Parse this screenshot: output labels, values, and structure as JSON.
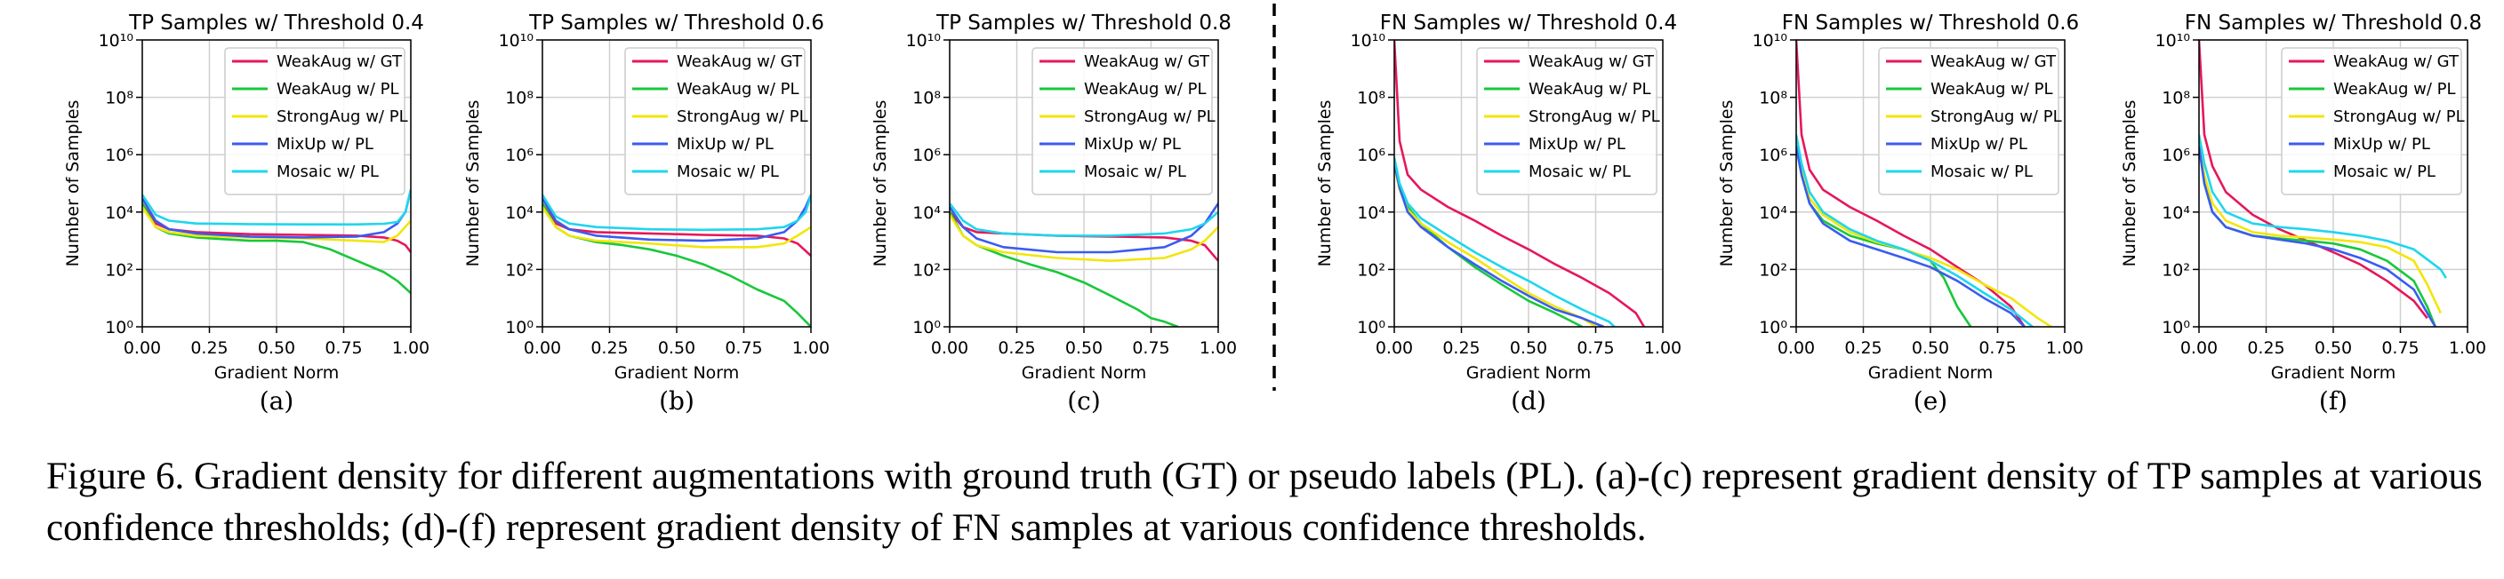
{
  "colors": {
    "weak_gt": "#e6175a",
    "weak_pl": "#18c83a",
    "strong_pl": "#f2e60c",
    "mixup_pl": "#3a5cf0",
    "mosaic_pl": "#1ed6ee"
  },
  "caption": "Figure 6. Gradient density for different augmentations with ground truth (GT) or pseudo labels (PL). (a)-(c) represent gradient density of TP samples at various confidence thresholds; (d)-(f) represent gradient density of FN samples at various confidence thresholds.",
  "chart_data": [
    {
      "type": "line",
      "title": "TP Samples w/ Threshold 0.4",
      "sublabel": "(a)",
      "xlabel": "Gradient Norm",
      "ylabel": "Number of Samples",
      "xlim": [
        0,
        1
      ],
      "ylim": [
        1,
        10000000000
      ],
      "yscale": "log",
      "xticks": [
        "0.00",
        "0.25",
        "0.50",
        "0.75",
        "1.00"
      ],
      "grid": true,
      "legend": "top-right",
      "series": [
        {
          "name": "WeakAug w/ GT",
          "color": "#e6175a",
          "x": [
            0.0,
            0.05,
            0.1,
            0.2,
            0.4,
            0.6,
            0.8,
            0.9,
            0.95,
            0.98,
            1.0
          ],
          "y": [
            20000,
            4000,
            2500,
            2000,
            1700,
            1600,
            1500,
            1300,
            1000,
            700,
            400
          ]
        },
        {
          "name": "WeakAug w/ PL",
          "color": "#18c83a",
          "x": [
            0.0,
            0.05,
            0.1,
            0.2,
            0.4,
            0.5,
            0.6,
            0.7,
            0.8,
            0.9,
            0.95,
            1.0
          ],
          "y": [
            20000,
            3000,
            1800,
            1300,
            1000,
            1000,
            900,
            500,
            200,
            80,
            40,
            15
          ]
        },
        {
          "name": "StrongAug w/ PL",
          "color": "#f2e60c",
          "x": [
            0.0,
            0.05,
            0.1,
            0.2,
            0.4,
            0.6,
            0.8,
            0.9,
            0.95,
            1.0
          ],
          "y": [
            15000,
            3000,
            2000,
            1500,
            1300,
            1200,
            1000,
            900,
            1500,
            5000
          ]
        },
        {
          "name": "MixUp w/ PL",
          "color": "#3a5cf0",
          "x": [
            0.0,
            0.05,
            0.1,
            0.2,
            0.4,
            0.6,
            0.8,
            0.9,
            0.95,
            0.98,
            1.0
          ],
          "y": [
            30000,
            5000,
            2500,
            1800,
            1400,
            1300,
            1400,
            2000,
            4000,
            10000,
            60000
          ]
        },
        {
          "name": "Mosaic w/ PL",
          "color": "#1ed6ee",
          "x": [
            0.0,
            0.05,
            0.1,
            0.2,
            0.4,
            0.6,
            0.8,
            0.9,
            0.95,
            0.98,
            1.0
          ],
          "y": [
            40000,
            8000,
            5000,
            4000,
            3800,
            3700,
            3700,
            3900,
            4500,
            10000,
            60000
          ]
        }
      ]
    },
    {
      "type": "line",
      "title": "TP Samples w/ Threshold 0.6",
      "sublabel": "(b)",
      "xlabel": "Gradient Norm",
      "ylabel": "Number of Samples",
      "xlim": [
        0,
        1
      ],
      "ylim": [
        1,
        10000000000
      ],
      "yscale": "log",
      "xticks": [
        "0.00",
        "0.25",
        "0.50",
        "0.75",
        "1.00"
      ],
      "grid": true,
      "legend": "top-right",
      "series": [
        {
          "name": "WeakAug w/ GT",
          "color": "#e6175a",
          "x": [
            0.0,
            0.05,
            0.1,
            0.2,
            0.4,
            0.6,
            0.8,
            0.9,
            0.95,
            1.0
          ],
          "y": [
            20000,
            4000,
            2500,
            2000,
            1800,
            1600,
            1500,
            1200,
            800,
            300
          ]
        },
        {
          "name": "WeakAug w/ PL",
          "color": "#18c83a",
          "x": [
            0.0,
            0.05,
            0.1,
            0.2,
            0.3,
            0.4,
            0.5,
            0.6,
            0.7,
            0.8,
            0.9,
            0.95,
            1.0
          ],
          "y": [
            20000,
            3000,
            1500,
            900,
            700,
            500,
            300,
            150,
            60,
            20,
            8,
            3,
            1
          ]
        },
        {
          "name": "StrongAug w/ PL",
          "color": "#f2e60c",
          "x": [
            0.0,
            0.05,
            0.1,
            0.2,
            0.4,
            0.6,
            0.8,
            0.9,
            0.95,
            1.0
          ],
          "y": [
            15000,
            3000,
            1500,
            1000,
            800,
            600,
            600,
            800,
            1500,
            3000
          ]
        },
        {
          "name": "MixUp w/ PL",
          "color": "#3a5cf0",
          "x": [
            0.0,
            0.05,
            0.1,
            0.2,
            0.4,
            0.6,
            0.8,
            0.9,
            0.95,
            0.98,
            1.0
          ],
          "y": [
            30000,
            5000,
            2500,
            1500,
            1100,
            1000,
            1200,
            2000,
            5000,
            15000,
            40000
          ]
        },
        {
          "name": "Mosaic w/ PL",
          "color": "#1ed6ee",
          "x": [
            0.0,
            0.05,
            0.1,
            0.2,
            0.4,
            0.6,
            0.8,
            0.9,
            0.95,
            0.98,
            1.0
          ],
          "y": [
            40000,
            7000,
            4000,
            3000,
            2500,
            2400,
            2500,
            3000,
            5000,
            10000,
            40000
          ]
        }
      ]
    },
    {
      "type": "line",
      "title": "TP Samples w/ Threshold 0.8",
      "sublabel": "(c)",
      "xlabel": "Gradient Norm",
      "ylabel": "Number of Samples",
      "xlim": [
        0,
        1
      ],
      "ylim": [
        1,
        10000000000
      ],
      "yscale": "log",
      "xticks": [
        "0.00",
        "0.25",
        "0.50",
        "0.75",
        "1.00"
      ],
      "grid": true,
      "legend": "top-right",
      "series": [
        {
          "name": "WeakAug w/ GT",
          "color": "#e6175a",
          "x": [
            0.0,
            0.05,
            0.1,
            0.2,
            0.4,
            0.6,
            0.8,
            0.9,
            0.95,
            1.0
          ],
          "y": [
            10000,
            3000,
            2000,
            1800,
            1500,
            1400,
            1300,
            1000,
            700,
            200
          ]
        },
        {
          "name": "WeakAug w/ PL",
          "color": "#18c83a",
          "x": [
            0.0,
            0.05,
            0.1,
            0.2,
            0.3,
            0.4,
            0.5,
            0.6,
            0.7,
            0.75,
            0.8,
            0.85
          ],
          "y": [
            10000,
            1500,
            700,
            300,
            150,
            80,
            35,
            12,
            4,
            2,
            1.5,
            1
          ]
        },
        {
          "name": "StrongAug w/ PL",
          "color": "#f2e60c",
          "x": [
            0.0,
            0.05,
            0.1,
            0.2,
            0.4,
            0.6,
            0.8,
            0.9,
            0.95,
            1.0
          ],
          "y": [
            8000,
            1500,
            700,
            400,
            250,
            200,
            250,
            500,
            1000,
            3000
          ]
        },
        {
          "name": "MixUp w/ PL",
          "color": "#3a5cf0",
          "x": [
            0.0,
            0.05,
            0.1,
            0.2,
            0.4,
            0.6,
            0.8,
            0.9,
            0.95,
            1.0
          ],
          "y": [
            15000,
            3000,
            1200,
            600,
            400,
            400,
            600,
            1500,
            4000,
            20000
          ]
        },
        {
          "name": "Mosaic w/ PL",
          "color": "#1ed6ee",
          "x": [
            0.0,
            0.05,
            0.1,
            0.2,
            0.4,
            0.6,
            0.8,
            0.9,
            0.95,
            1.0
          ],
          "y": [
            20000,
            5000,
            2500,
            1800,
            1500,
            1500,
            1800,
            2500,
            4000,
            10000
          ]
        }
      ]
    },
    {
      "type": "line",
      "title": "FN Samples w/ Threshold 0.4",
      "sublabel": "(d)",
      "xlabel": "Gradient Norm",
      "ylabel": "Number of Samples",
      "xlim": [
        0,
        1
      ],
      "ylim": [
        1,
        10000000000
      ],
      "yscale": "log",
      "xticks": [
        "0.00",
        "0.25",
        "0.50",
        "0.75",
        "1.00"
      ],
      "grid": true,
      "legend": "top-right",
      "series": [
        {
          "name": "WeakAug w/ GT",
          "color": "#e6175a",
          "x": [
            0.0,
            0.02,
            0.05,
            0.1,
            0.2,
            0.3,
            0.4,
            0.5,
            0.6,
            0.7,
            0.8,
            0.9,
            0.93
          ],
          "y": [
            10000000000,
            3000000,
            200000,
            60000,
            15000,
            5000,
            1500,
            500,
            150,
            50,
            15,
            3,
            1
          ]
        },
        {
          "name": "WeakAug w/ PL",
          "color": "#18c83a",
          "x": [
            0.0,
            0.02,
            0.05,
            0.1,
            0.2,
            0.3,
            0.4,
            0.5,
            0.6,
            0.7
          ],
          "y": [
            500000,
            80000,
            15000,
            4000,
            600,
            120,
            30,
            8,
            3,
            1
          ]
        },
        {
          "name": "StrongAug w/ PL",
          "color": "#f2e60c",
          "x": [
            0.0,
            0.02,
            0.05,
            0.1,
            0.2,
            0.3,
            0.4,
            0.5,
            0.6,
            0.7,
            0.75
          ],
          "y": [
            400000,
            60000,
            12000,
            4000,
            900,
            250,
            60,
            15,
            5,
            2,
            1
          ]
        },
        {
          "name": "MixUp w/ PL",
          "color": "#3a5cf0",
          "x": [
            0.0,
            0.02,
            0.05,
            0.1,
            0.2,
            0.3,
            0.4,
            0.5,
            0.6,
            0.7,
            0.78
          ],
          "y": [
            500000,
            70000,
            10000,
            3000,
            600,
            150,
            40,
            12,
            4,
            2,
            1
          ]
        },
        {
          "name": "Mosaic w/ PL",
          "color": "#1ed6ee",
          "x": [
            0.0,
            0.02,
            0.05,
            0.1,
            0.2,
            0.3,
            0.4,
            0.5,
            0.6,
            0.7,
            0.8,
            0.82
          ],
          "y": [
            800000,
            100000,
            20000,
            6000,
            1500,
            400,
            120,
            40,
            12,
            4,
            1.5,
            1
          ]
        }
      ]
    },
    {
      "type": "line",
      "title": "FN Samples w/ Threshold 0.6",
      "sublabel": "(e)",
      "xlabel": "Gradient Norm",
      "ylabel": "Number of Samples",
      "xlim": [
        0,
        1
      ],
      "ylim": [
        1,
        10000000000
      ],
      "yscale": "log",
      "xticks": [
        "0.00",
        "0.25",
        "0.50",
        "0.75",
        "1.00"
      ],
      "grid": true,
      "legend": "top-right",
      "series": [
        {
          "name": "WeakAug w/ GT",
          "color": "#e6175a",
          "x": [
            0.0,
            0.02,
            0.05,
            0.1,
            0.2,
            0.3,
            0.4,
            0.5,
            0.6,
            0.7,
            0.8,
            0.85
          ],
          "y": [
            10000000000,
            5000000,
            300000,
            60000,
            15000,
            5000,
            1500,
            500,
            120,
            30,
            5,
            1
          ]
        },
        {
          "name": "WeakAug w/ PL",
          "color": "#18c83a",
          "x": [
            0.0,
            0.02,
            0.05,
            0.1,
            0.2,
            0.3,
            0.4,
            0.5,
            0.55,
            0.6,
            0.65
          ],
          "y": [
            2000000,
            200000,
            20000,
            5000,
            1500,
            800,
            500,
            200,
            50,
            5,
            1
          ]
        },
        {
          "name": "StrongAug w/ PL",
          "color": "#f2e60c",
          "x": [
            0.0,
            0.02,
            0.05,
            0.1,
            0.2,
            0.3,
            0.4,
            0.5,
            0.6,
            0.7,
            0.8,
            0.9,
            0.95
          ],
          "y": [
            3000000,
            300000,
            30000,
            8000,
            2000,
            900,
            500,
            250,
            100,
            30,
            10,
            2,
            1
          ]
        },
        {
          "name": "MixUp w/ PL",
          "color": "#3a5cf0",
          "x": [
            0.0,
            0.02,
            0.05,
            0.1,
            0.2,
            0.3,
            0.4,
            0.5,
            0.6,
            0.7,
            0.8,
            0.85
          ],
          "y": [
            2000000,
            200000,
            20000,
            4000,
            1000,
            500,
            250,
            120,
            40,
            10,
            3,
            1
          ]
        },
        {
          "name": "Mosaic w/ PL",
          "color": "#1ed6ee",
          "x": [
            0.0,
            0.02,
            0.05,
            0.1,
            0.2,
            0.3,
            0.4,
            0.5,
            0.6,
            0.7,
            0.8,
            0.88
          ],
          "y": [
            5000000,
            500000,
            50000,
            10000,
            2500,
            1000,
            500,
            200,
            60,
            15,
            4,
            1
          ]
        }
      ]
    },
    {
      "type": "line",
      "title": "FN Samples w/ Threshold 0.8",
      "sublabel": "(f)",
      "xlabel": "Gradient Norm",
      "ylabel": "Number of Samples",
      "xlim": [
        0,
        1
      ],
      "ylim": [
        1,
        10000000000
      ],
      "yscale": "log",
      "xticks": [
        "0.00",
        "0.25",
        "0.50",
        "0.75",
        "1.00"
      ],
      "grid": true,
      "legend": "top-right",
      "series": [
        {
          "name": "WeakAug w/ GT",
          "color": "#e6175a",
          "x": [
            0.0,
            0.02,
            0.05,
            0.1,
            0.2,
            0.3,
            0.4,
            0.5,
            0.6,
            0.7,
            0.8,
            0.85
          ],
          "y": [
            10000000000,
            5000000,
            400000,
            50000,
            8000,
            2500,
            1000,
            400,
            150,
            40,
            8,
            2
          ]
        },
        {
          "name": "WeakAug w/ PL",
          "color": "#18c83a",
          "x": [
            0.0,
            0.02,
            0.05,
            0.1,
            0.2,
            0.3,
            0.4,
            0.5,
            0.6,
            0.7,
            0.8,
            0.85,
            0.88
          ],
          "y": [
            2000000,
            100000,
            10000,
            3000,
            1500,
            1200,
            1000,
            800,
            500,
            200,
            40,
            5,
            1
          ]
        },
        {
          "name": "StrongAug w/ PL",
          "color": "#f2e60c",
          "x": [
            0.0,
            0.02,
            0.05,
            0.1,
            0.2,
            0.3,
            0.4,
            0.5,
            0.6,
            0.7,
            0.8,
            0.85,
            0.9
          ],
          "y": [
            3000000,
            200000,
            20000,
            5000,
            2000,
            1500,
            1300,
            1100,
            900,
            600,
            200,
            30,
            3
          ]
        },
        {
          "name": "MixUp w/ PL",
          "color": "#3a5cf0",
          "x": [
            0.0,
            0.02,
            0.05,
            0.1,
            0.2,
            0.3,
            0.4,
            0.5,
            0.6,
            0.7,
            0.8,
            0.85,
            0.88
          ],
          "y": [
            2000000,
            100000,
            10000,
            3000,
            1500,
            1100,
            800,
            500,
            250,
            100,
            20,
            3,
            1
          ]
        },
        {
          "name": "Mosaic w/ PL",
          "color": "#1ed6ee",
          "x": [
            0.0,
            0.02,
            0.05,
            0.1,
            0.2,
            0.3,
            0.4,
            0.5,
            0.6,
            0.7,
            0.8,
            0.9,
            0.92
          ],
          "y": [
            5000000,
            500000,
            50000,
            10000,
            4000,
            3000,
            2500,
            2000,
            1500,
            1000,
            500,
            100,
            50
          ]
        }
      ]
    }
  ]
}
